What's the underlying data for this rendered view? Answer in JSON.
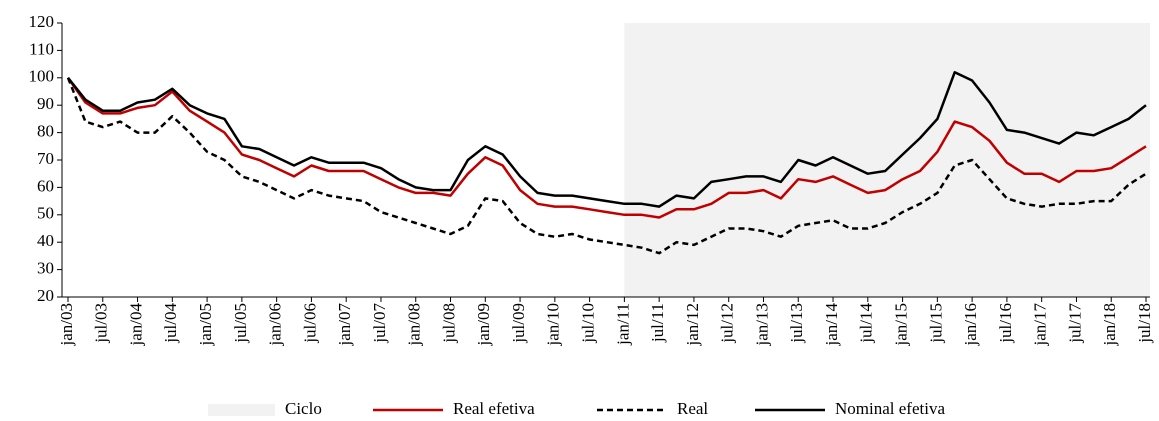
{
  "chart_data": {
    "type": "line",
    "categories": [
      "jan/03",
      null,
      "jul/03",
      null,
      "jan/04",
      null,
      "jul/04",
      null,
      "jan/05",
      null,
      "jul/05",
      null,
      "jan/06",
      null,
      "jul/06",
      null,
      "jan/07",
      null,
      "jul/07",
      null,
      "jan/08",
      null,
      "jul/08",
      null,
      "jan/09",
      null,
      "jul/09",
      null,
      "jan/10",
      null,
      "jul/10",
      null,
      "jan/11",
      null,
      "jul/11",
      null,
      "jan/12",
      null,
      "jul/12",
      null,
      "jan/13",
      null,
      "jul/13",
      null,
      "jan/14",
      null,
      "jul/14",
      null,
      "jan/15",
      null,
      "jul/15",
      null,
      "jan/16",
      null,
      "jul/16",
      null,
      "jan/17",
      null,
      "jul/17",
      null,
      "jan/18",
      null,
      "jul/18"
    ],
    "shade": {
      "name": "Ciclo",
      "start": "jan/11",
      "color": "#f2f2f2"
    },
    "series": [
      {
        "name": "Real efetiva",
        "color": "#c00000",
        "dash": "none",
        "values": [
          100,
          91,
          87,
          87,
          89,
          90,
          95,
          88,
          84,
          80,
          72,
          70,
          67,
          64,
          68,
          66,
          66,
          66,
          63,
          60,
          58,
          58,
          57,
          65,
          71,
          68,
          59,
          54,
          53,
          53,
          52,
          51,
          50,
          50,
          49,
          52,
          52,
          54,
          58,
          58,
          59,
          56,
          63,
          62,
          64,
          61,
          58,
          59,
          63,
          66,
          73,
          84,
          82,
          77,
          69,
          65,
          65,
          62,
          66,
          66,
          67,
          71,
          75
        ]
      },
      {
        "name": "Real",
        "color": "#000000",
        "dash": "6 4",
        "values": [
          100,
          84,
          82,
          84,
          80,
          80,
          86,
          80,
          73,
          70,
          64,
          62,
          59,
          56,
          59,
          57,
          56,
          55,
          51,
          49,
          47,
          45,
          43,
          46,
          56,
          55,
          47,
          43,
          42,
          43,
          41,
          40,
          39,
          38,
          36,
          40,
          39,
          42,
          45,
          45,
          44,
          42,
          46,
          47,
          48,
          45,
          45,
          47,
          51,
          54,
          58,
          68,
          70,
          63,
          56,
          54,
          53,
          54,
          54,
          55,
          55,
          61,
          65
        ]
      },
      {
        "name": "Nominal efetiva",
        "color": "#000000",
        "dash": "none",
        "values": [
          100,
          92,
          88,
          88,
          91,
          92,
          96,
          90,
          87,
          85,
          75,
          74,
          71,
          68,
          71,
          69,
          69,
          69,
          67,
          63,
          60,
          59,
          59,
          70,
          75,
          72,
          64,
          58,
          57,
          57,
          56,
          55,
          54,
          54,
          53,
          57,
          56,
          62,
          63,
          64,
          64,
          62,
          70,
          68,
          71,
          68,
          65,
          66,
          72,
          78,
          85,
          102,
          99,
          91,
          81,
          80,
          78,
          76,
          80,
          79,
          82,
          85,
          90
        ]
      }
    ],
    "ylim": [
      20,
      120
    ],
    "yticks": [
      20,
      30,
      40,
      50,
      60,
      70,
      80,
      90,
      100,
      110,
      120
    ]
  }
}
